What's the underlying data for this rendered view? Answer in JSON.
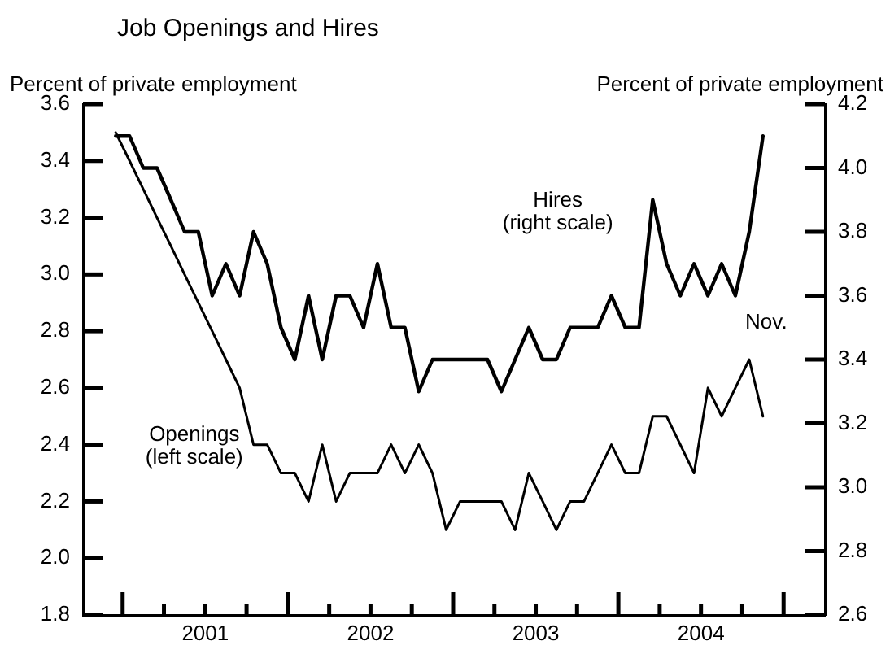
{
  "chart_data": {
    "type": "line",
    "title": "Job Openings and Hires",
    "ylabel": "Percent of private employment",
    "y2label": "Percent of private employment",
    "x": [
      2000.958,
      2001.042,
      2001.125,
      2001.208,
      2001.292,
      2001.375,
      2001.458,
      2001.542,
      2001.625,
      2001.708,
      2001.792,
      2001.875,
      2001.958,
      2002.042,
      2002.125,
      2002.208,
      2002.292,
      2002.375,
      2002.458,
      2002.542,
      2002.625,
      2002.708,
      2002.792,
      2002.875,
      2002.958,
      2003.042,
      2003.125,
      2003.208,
      2003.292,
      2003.375,
      2003.458,
      2003.542,
      2003.625,
      2003.708,
      2003.792,
      2003.875,
      2003.958,
      2004.042,
      2004.125,
      2004.208,
      2004.292,
      2004.375,
      2004.458,
      2004.542,
      2004.625,
      2004.708,
      2004.792,
      2004.875
    ],
    "series": [
      {
        "name": "Openings (left scale)",
        "color": "#000000",
        "values": [
          3.5,
          3.4,
          3.3,
          3.2,
          3.1,
          3.0,
          2.9,
          2.8,
          2.7,
          2.6,
          2.4,
          2.4,
          2.3,
          2.3,
          2.2,
          2.4,
          2.2,
          2.3,
          2.3,
          2.3,
          2.4,
          2.3,
          2.4,
          2.3,
          2.1,
          2.2,
          2.2,
          2.2,
          2.2,
          2.1,
          2.3,
          2.2,
          2.1,
          2.2,
          2.2,
          2.3,
          2.4,
          2.3,
          2.3,
          2.5,
          2.5,
          2.4,
          2.3,
          2.6,
          2.5,
          2.6,
          2.7,
          2.5
        ]
      },
      {
        "name": "Hires (right scale)",
        "color": "#000000",
        "axis": "y2",
        "values": [
          4.1,
          4.1,
          4.0,
          4.0,
          3.9,
          3.8,
          3.8,
          3.6,
          3.7,
          3.6,
          3.8,
          3.7,
          3.5,
          3.4,
          3.6,
          3.4,
          3.6,
          3.6,
          3.5,
          3.7,
          3.5,
          3.5,
          3.3,
          3.4,
          3.4,
          3.4,
          3.4,
          3.4,
          3.3,
          3.4,
          3.5,
          3.4,
          3.4,
          3.5,
          3.5,
          3.5,
          3.6,
          3.5,
          3.5,
          3.9,
          3.7,
          3.6,
          3.7,
          3.6,
          3.7,
          3.6,
          3.8,
          4.1
        ]
      }
    ],
    "xlim": [
      2000.76,
      2005.25
    ],
    "xticks": [
      {
        "value": 2001,
        "label": null
      },
      {
        "value": 2001.25,
        "label": null
      },
      {
        "value": 2001.5,
        "label": "2001"
      },
      {
        "value": 2001.75,
        "label": null
      },
      {
        "value": 2002,
        "label": null
      },
      {
        "value": 2002.25,
        "label": null
      },
      {
        "value": 2002.5,
        "label": "2002"
      },
      {
        "value": 2002.75,
        "label": null
      },
      {
        "value": 2003,
        "label": null
      },
      {
        "value": 2003.25,
        "label": null
      },
      {
        "value": 2003.5,
        "label": "2003"
      },
      {
        "value": 2003.75,
        "label": null
      },
      {
        "value": 2004,
        "label": null
      },
      {
        "value": 2004.25,
        "label": null
      },
      {
        "value": 2004.5,
        "label": "2004"
      },
      {
        "value": 2004.75,
        "label": null
      },
      {
        "value": 2005,
        "label": null
      }
    ],
    "ylim": [
      1.8,
      3.6
    ],
    "yticks": [
      1.8,
      {
        "value": 2,
        "label": "2.0"
      },
      2.2,
      2.4,
      2.6,
      2.8,
      {
        "value": 3,
        "label": "3.0"
      },
      3.2,
      3.4,
      3.6
    ],
    "y2lim": [
      2.6,
      4.2
    ],
    "y2ticks": [
      2.6,
      2.8,
      {
        "value": 3,
        "label": "3.0"
      },
      3.2,
      3.4,
      3.6,
      3.8,
      {
        "value": 4,
        "label": "4.0"
      },
      4.2
    ],
    "annotations": [
      "Nov."
    ],
    "grid": false,
    "legend": false,
    "marker": "none",
    "line_style": "solid"
  }
}
